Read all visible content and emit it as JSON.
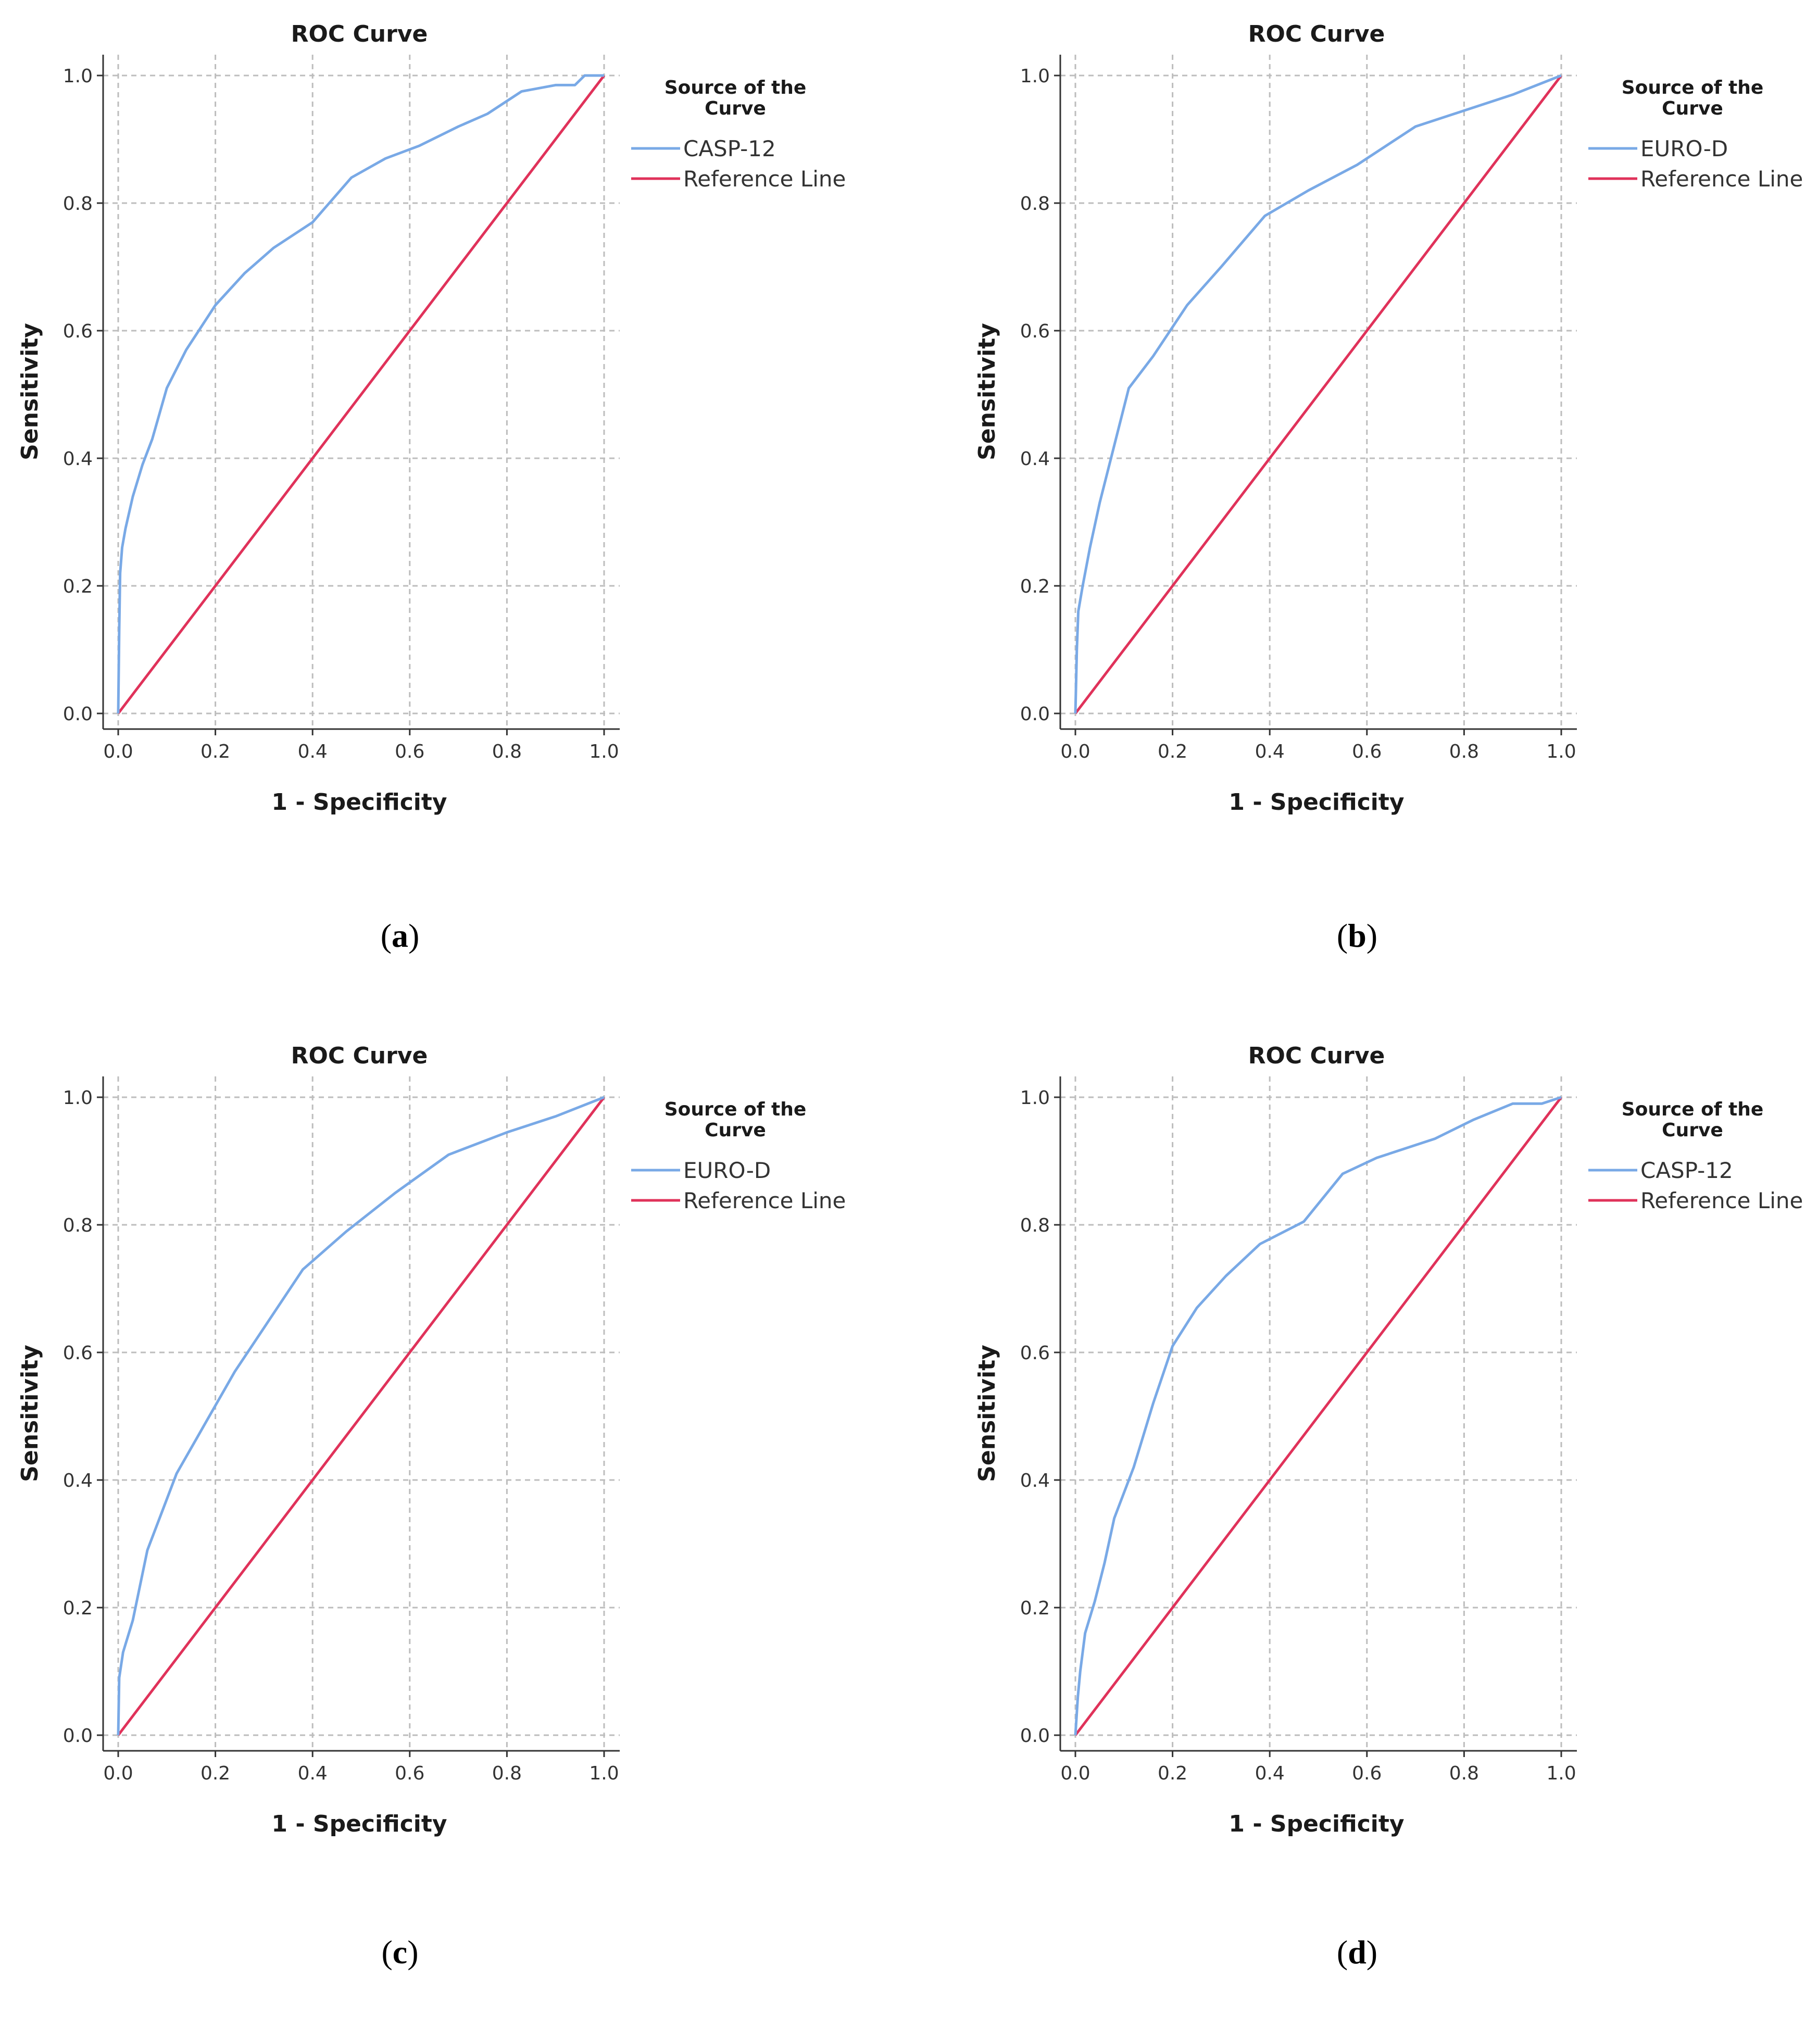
{
  "chart_data": [
    {
      "panel": "a",
      "type": "line",
      "title": "ROC Curve",
      "xlabel": "1 - Specificity",
      "ylabel": "Sensitivity",
      "xlim": [
        0,
        1
      ],
      "ylim": [
        0,
        1
      ],
      "xticks": [
        "0.0",
        "0.2",
        "0.4",
        "0.6",
        "0.8",
        "1.0"
      ],
      "yticks": [
        "0.0",
        "0.2",
        "0.4",
        "0.6",
        "0.8",
        "1.0"
      ],
      "grid": true,
      "legend_title": "Source of the Curve",
      "legend_position": "right",
      "caption": "a",
      "series": [
        {
          "name": "CASP-12",
          "color": "#79a9e6",
          "x": [
            0,
            0.002,
            0.004,
            0.008,
            0.015,
            0.03,
            0.05,
            0.07,
            0.1,
            0.14,
            0.2,
            0.26,
            0.32,
            0.4,
            0.48,
            0.55,
            0.62,
            0.7,
            0.76,
            0.83,
            0.9,
            0.94,
            0.96,
            1.0
          ],
          "y": [
            0,
            0.13,
            0.22,
            0.26,
            0.29,
            0.34,
            0.39,
            0.43,
            0.51,
            0.57,
            0.64,
            0.69,
            0.73,
            0.77,
            0.84,
            0.87,
            0.89,
            0.92,
            0.94,
            0.975,
            0.985,
            0.985,
            1.0,
            1.0
          ]
        },
        {
          "name": "Reference Line",
          "color": "#e0325a",
          "x": [
            0,
            1
          ],
          "y": [
            0,
            1
          ]
        }
      ]
    },
    {
      "panel": "b",
      "type": "line",
      "title": "ROC Curve",
      "xlabel": "1 - Specificity",
      "ylabel": "Sensitivity",
      "xlim": [
        0,
        1
      ],
      "ylim": [
        0,
        1
      ],
      "xticks": [
        "0.0",
        "0.2",
        "0.4",
        "0.6",
        "0.8",
        "1.0"
      ],
      "yticks": [
        "0.0",
        "0.2",
        "0.4",
        "0.6",
        "0.8",
        "1.0"
      ],
      "grid": true,
      "legend_title": "Source of the Curve",
      "legend_position": "right",
      "caption": "b",
      "series": [
        {
          "name": "EURO-D",
          "color": "#79a9e6",
          "x": [
            0,
            0.003,
            0.006,
            0.015,
            0.03,
            0.05,
            0.08,
            0.11,
            0.16,
            0.23,
            0.3,
            0.39,
            0.48,
            0.58,
            0.7,
            0.8,
            0.9,
            1.0
          ],
          "y": [
            0,
            0.1,
            0.16,
            0.2,
            0.26,
            0.33,
            0.42,
            0.51,
            0.56,
            0.64,
            0.7,
            0.78,
            0.82,
            0.86,
            0.92,
            0.945,
            0.97,
            1.0
          ]
        },
        {
          "name": "Reference Line",
          "color": "#e0325a",
          "x": [
            0,
            1
          ],
          "y": [
            0,
            1
          ]
        }
      ]
    },
    {
      "panel": "c",
      "type": "line",
      "title": "ROC Curve",
      "xlabel": "1 - Specificity",
      "ylabel": "Sensitivity",
      "xlim": [
        0,
        1
      ],
      "ylim": [
        0,
        1
      ],
      "xticks": [
        "0.0",
        "0.2",
        "0.4",
        "0.6",
        "0.8",
        "1.0"
      ],
      "yticks": [
        "0.0",
        "0.2",
        "0.4",
        "0.6",
        "0.8",
        "1.0"
      ],
      "grid": true,
      "legend_title": "Source of the Curve",
      "legend_position": "right",
      "caption": "c",
      "series": [
        {
          "name": "EURO-D",
          "color": "#79a9e6",
          "x": [
            0,
            0.002,
            0.01,
            0.03,
            0.06,
            0.09,
            0.12,
            0.18,
            0.24,
            0.31,
            0.38,
            0.47,
            0.57,
            0.68,
            0.8,
            0.9,
            1.0
          ],
          "y": [
            0,
            0.09,
            0.13,
            0.18,
            0.29,
            0.35,
            0.41,
            0.49,
            0.57,
            0.65,
            0.73,
            0.79,
            0.85,
            0.91,
            0.945,
            0.97,
            1.0
          ]
        },
        {
          "name": "Reference Line",
          "color": "#e0325a",
          "x": [
            0,
            1
          ],
          "y": [
            0,
            1
          ]
        }
      ]
    },
    {
      "panel": "d",
      "type": "line",
      "title": "ROC Curve",
      "xlabel": "1 - Specificity",
      "ylabel": "Sensitivity",
      "xlim": [
        0,
        1
      ],
      "ylim": [
        0,
        1
      ],
      "xticks": [
        "0.0",
        "0.2",
        "0.4",
        "0.6",
        "0.8",
        "1.0"
      ],
      "yticks": [
        "0.0",
        "0.2",
        "0.4",
        "0.6",
        "0.8",
        "1.0"
      ],
      "grid": true,
      "legend_title": "Source of the Curve",
      "legend_position": "right",
      "caption": "d",
      "series": [
        {
          "name": "CASP-12",
          "color": "#79a9e6",
          "x": [
            0,
            0.005,
            0.01,
            0.02,
            0.04,
            0.06,
            0.08,
            0.12,
            0.16,
            0.2,
            0.25,
            0.31,
            0.38,
            0.47,
            0.55,
            0.62,
            0.74,
            0.82,
            0.9,
            0.96,
            1.0
          ],
          "y": [
            0,
            0.06,
            0.1,
            0.16,
            0.21,
            0.27,
            0.34,
            0.42,
            0.52,
            0.61,
            0.67,
            0.72,
            0.77,
            0.805,
            0.88,
            0.905,
            0.935,
            0.965,
            0.99,
            0.99,
            1.0
          ]
        },
        {
          "name": "Reference Line",
          "color": "#e0325a",
          "x": [
            0,
            1
          ],
          "y": [
            0,
            1
          ]
        }
      ]
    }
  ]
}
